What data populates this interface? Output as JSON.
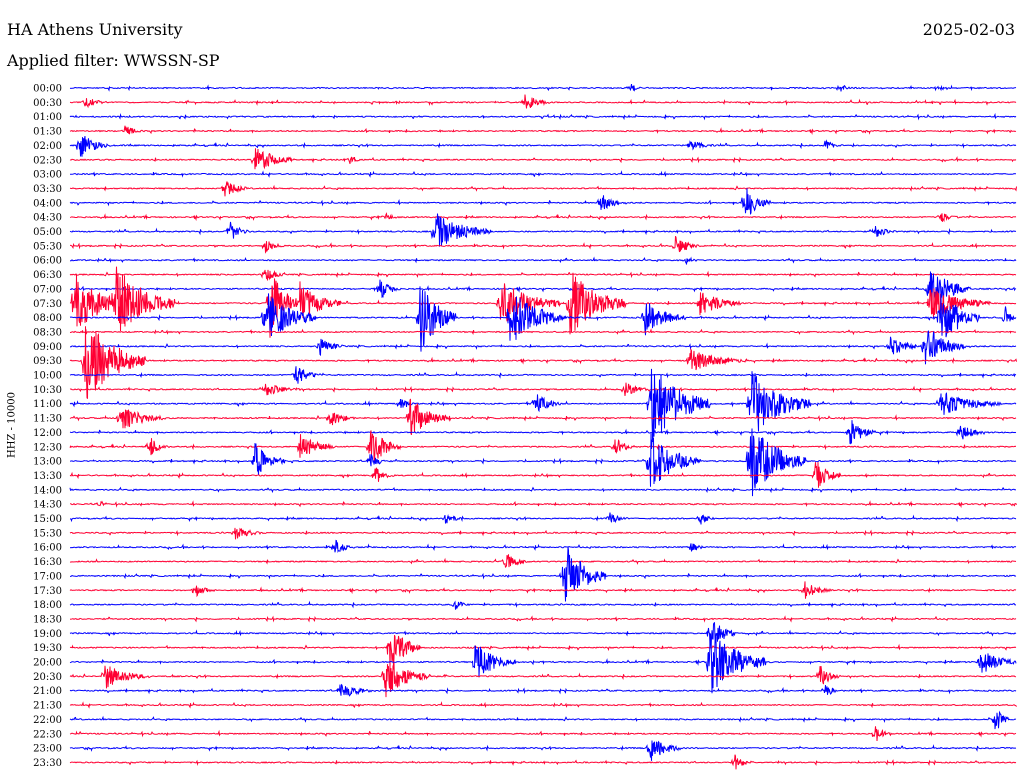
{
  "header": {
    "station": "HA Athens University",
    "date": "2025-02-03",
    "filter": "Applied filter: WWSSN-SP"
  },
  "chart_data": {
    "type": "line",
    "title": "HA Athens University",
    "subtitle": "Applied filter: WWSSN-SP",
    "ylabel": "HHZ - 10000",
    "colors": [
      "#0000ff",
      "#ff0033"
    ],
    "grid": false,
    "rows": [
      "00:00",
      "00:30",
      "01:00",
      "01:30",
      "02:00",
      "02:30",
      "03:00",
      "03:30",
      "04:00",
      "04:30",
      "05:00",
      "05:30",
      "06:00",
      "06:30",
      "07:00",
      "07:30",
      "08:00",
      "08:30",
      "09:00",
      "09:30",
      "10:00",
      "10:30",
      "11:00",
      "11:30",
      "12:00",
      "12:30",
      "13:00",
      "13:30",
      "14:00",
      "14:30",
      "15:00",
      "15:30",
      "16:00",
      "16:30",
      "17:00",
      "17:30",
      "18:00",
      "18:30",
      "19:00",
      "19:30",
      "20:00",
      "20:30",
      "21:00",
      "21:30",
      "22:00",
      "22:30",
      "23:00",
      "23:30"
    ]
  }
}
